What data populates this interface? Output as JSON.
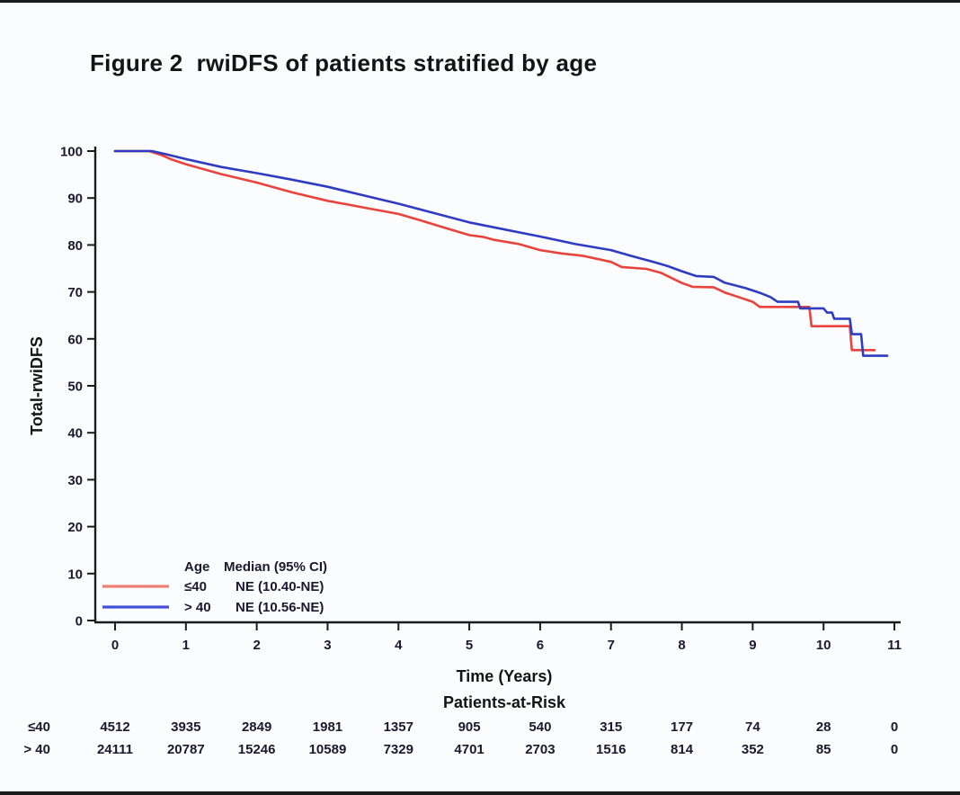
{
  "title": "Figure 2  rwiDFS of patients stratified by age",
  "frame": {
    "bar_color": "#1c1c1c",
    "background": "#fbfcfd"
  },
  "chart_data": {
    "type": "line",
    "subtype": "kaplan-meier-step",
    "title": "Figure 2  rwiDFS of patients stratified by age",
    "xlabel": "Time (Years)",
    "ylabel": "Total-rwiDFS",
    "xlim": [
      0,
      11
    ],
    "ylim": [
      0,
      100
    ],
    "xticks": [
      0,
      1,
      2,
      3,
      4,
      5,
      6,
      7,
      8,
      9,
      10,
      11
    ],
    "yticks": [
      0,
      10,
      20,
      30,
      40,
      50,
      60,
      70,
      80,
      90,
      100
    ],
    "grid": false,
    "axis_color": "#1b1b1b",
    "legend": {
      "position": "inside-bottom-left",
      "header_col1": "Age",
      "header_col2": "Median (95% CI)"
    },
    "series": [
      {
        "name": "≤40",
        "median": "NE (10.40-NE)",
        "color": "#e8433c",
        "legend_color": "#ef7e74",
        "points": [
          [
            0,
            100
          ],
          [
            0.48,
            100
          ],
          [
            0.65,
            99.2
          ],
          [
            0.8,
            98.2
          ],
          [
            1,
            97.2
          ],
          [
            1.5,
            95.1
          ],
          [
            2,
            93.3
          ],
          [
            2.5,
            91.2
          ],
          [
            3,
            89.4
          ],
          [
            3.5,
            88.0
          ],
          [
            4,
            86.6
          ],
          [
            4.3,
            85.3
          ],
          [
            4.6,
            83.9
          ],
          [
            5,
            82.1
          ],
          [
            5.2,
            81.7
          ],
          [
            5.35,
            81.1
          ],
          [
            5.7,
            80.2
          ],
          [
            6,
            78.9
          ],
          [
            6.3,
            78.2
          ],
          [
            6.6,
            77.7
          ],
          [
            7,
            76.4
          ],
          [
            7.15,
            75.3
          ],
          [
            7.5,
            74.9
          ],
          [
            7.7,
            74.1
          ],
          [
            8,
            71.9
          ],
          [
            8.15,
            71.1
          ],
          [
            8.45,
            71.0
          ],
          [
            8.6,
            69.9
          ],
          [
            8.8,
            68.9
          ],
          [
            9,
            67.9
          ],
          [
            9.1,
            66.8
          ],
          [
            9.8,
            66.8
          ],
          [
            9.83,
            62.7
          ],
          [
            10.37,
            62.7
          ],
          [
            10.4,
            57.6
          ],
          [
            10.72,
            57.6
          ]
        ]
      },
      {
        "name": "> 40",
        "median": "NE (10.56-NE)",
        "color": "#2e3cc2",
        "legend_color": "#4453d6",
        "points": [
          [
            0,
            100
          ],
          [
            0.52,
            100
          ],
          [
            0.7,
            99.4
          ],
          [
            1,
            98.3
          ],
          [
            1.5,
            96.6
          ],
          [
            2,
            95.3
          ],
          [
            2.5,
            93.9
          ],
          [
            3,
            92.4
          ],
          [
            3.5,
            90.6
          ],
          [
            4,
            88.8
          ],
          [
            4.5,
            86.8
          ],
          [
            5,
            84.8
          ],
          [
            5.5,
            83.3
          ],
          [
            6,
            81.8
          ],
          [
            6.5,
            80.2
          ],
          [
            7,
            78.9
          ],
          [
            7.3,
            77.6
          ],
          [
            7.6,
            76.4
          ],
          [
            7.8,
            75.5
          ],
          [
            8,
            74.4
          ],
          [
            8.2,
            73.4
          ],
          [
            8.45,
            73.2
          ],
          [
            8.6,
            72.0
          ],
          [
            8.9,
            70.8
          ],
          [
            9.1,
            69.8
          ],
          [
            9.25,
            68.9
          ],
          [
            9.35,
            67.9
          ],
          [
            9.64,
            67.9
          ],
          [
            9.67,
            66.5
          ],
          [
            10.0,
            66.5
          ],
          [
            10.05,
            65.6
          ],
          [
            10.12,
            65.6
          ],
          [
            10.15,
            64.3
          ],
          [
            10.37,
            64.3
          ],
          [
            10.4,
            61.0
          ],
          [
            10.53,
            61.0
          ],
          [
            10.56,
            56.4
          ],
          [
            10.9,
            56.4
          ]
        ]
      }
    ],
    "at_risk": {
      "title": "Patients-at-Risk",
      "times": [
        0,
        1,
        2,
        3,
        4,
        5,
        6,
        7,
        8,
        9,
        10,
        11
      ],
      "rows": [
        {
          "label": "≤40",
          "counts": [
            "4512",
            "3935",
            "2849",
            "1981",
            "1357",
            "905",
            "540",
            "315",
            "177",
            "74",
            "28",
            "0"
          ]
        },
        {
          "label": "> 40",
          "counts": [
            "24111",
            "20787",
            "15246",
            "10589",
            "7329",
            "4701",
            "2703",
            "1516",
            "814",
            "352",
            "85",
            "0"
          ]
        }
      ]
    }
  }
}
